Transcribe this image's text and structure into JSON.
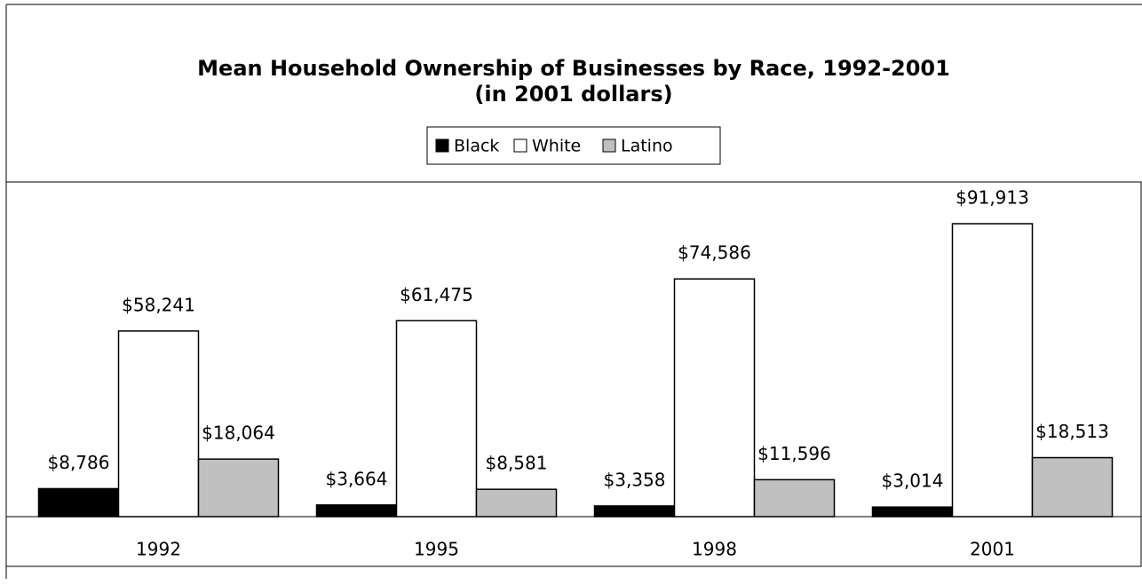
{
  "chart_data": {
    "type": "bar",
    "title": [
      "Mean Household Ownership of Businesses by Race, 1992-2001",
      "(in 2001 dollars)"
    ],
    "categories": [
      "1992",
      "1995",
      "1998",
      "2001"
    ],
    "ylim": [
      0,
      105000
    ],
    "legend": "top",
    "series": [
      {
        "name": "Black",
        "color": "#000000",
        "values": [
          8786,
          3664,
          3358,
          3014
        ],
        "value_labels": [
          "$8,786",
          "$3,664",
          "$3,358",
          "$3,014"
        ]
      },
      {
        "name": "White",
        "color": "#ffffff",
        "values": [
          58241,
          61475,
          74586,
          91913
        ],
        "value_labels": [
          "$58,241",
          "$61,475",
          "$74,586",
          "$91,913"
        ]
      },
      {
        "name": "Latino",
        "color": "#c0c0c0",
        "values": [
          18064,
          8581,
          11596,
          18513
        ],
        "value_labels": [
          "$18,064",
          "$8,581",
          "$11,596",
          "$18,513"
        ]
      }
    ]
  }
}
